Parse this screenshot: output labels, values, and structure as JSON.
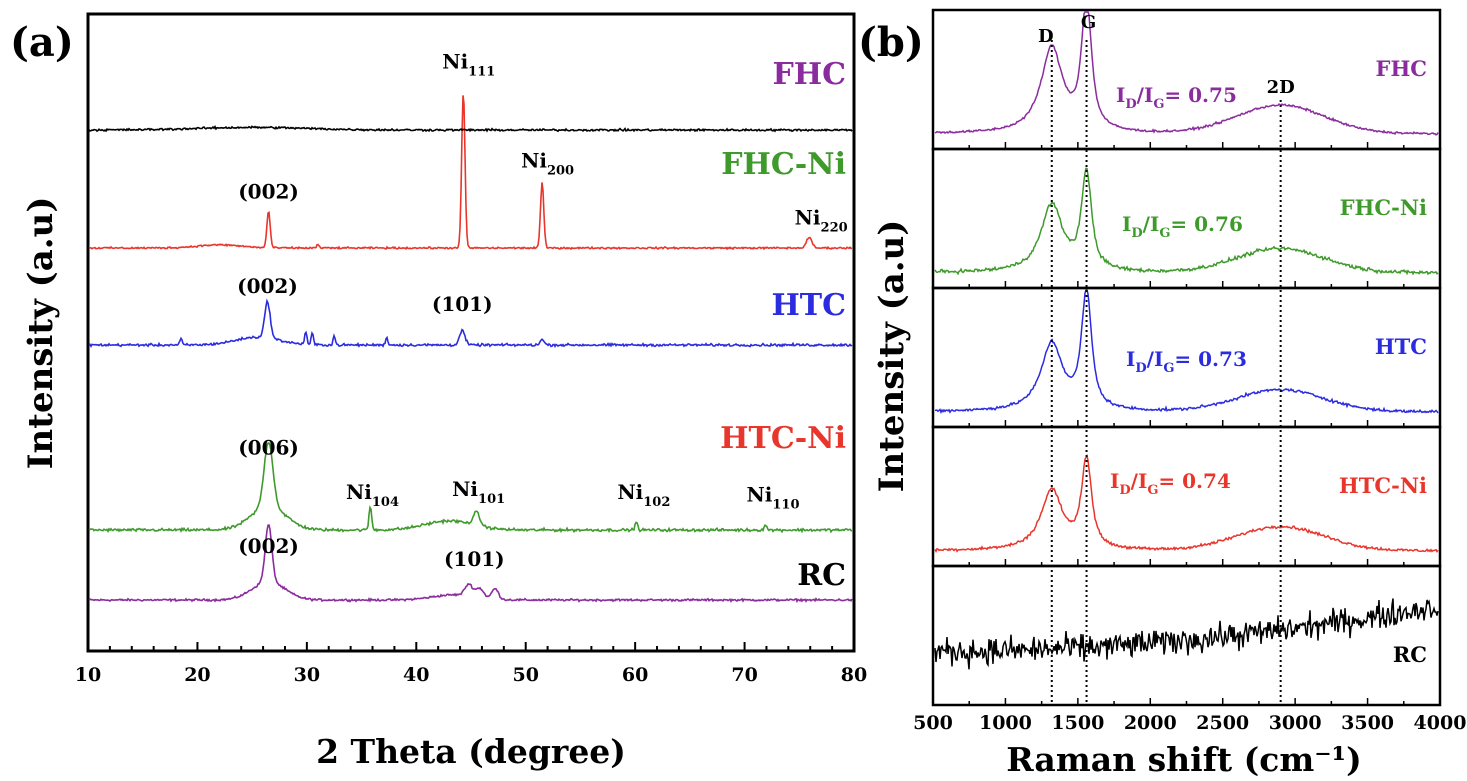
{
  "chart_data": [
    {
      "type": "line",
      "panel": "(a)",
      "xlabel": "2 Theta (degree)",
      "ylabel": "Intensity (a.u)",
      "xlim": [
        10,
        80
      ],
      "xticks": [
        "10",
        "20",
        "30",
        "40",
        "50",
        "60",
        "70",
        "80"
      ],
      "stacked": true,
      "series": [
        {
          "name": "FHC",
          "color": "#8B2C9E",
          "baseline_level": 4,
          "noise": 0.06,
          "peaks": [
            [
              26.5,
              2.2,
              0.3
            ],
            [
              26.5,
              0.7,
              1.5
            ],
            [
              44.8,
              0.45,
              0.35
            ],
            [
              45.8,
              0.35,
              0.35
            ],
            [
              47.2,
              0.4,
              0.3
            ],
            [
              43.5,
              0.2,
              2.0
            ]
          ],
          "annotations": [
            {
              "text": "(002)",
              "x": 26.5,
              "level": 1.8
            },
            {
              "text": "(101)",
              "x": 45.3,
              "level": 1.3
            }
          ]
        },
        {
          "name": "FHC-Ni",
          "color": "#3F9A2C",
          "baseline_level": 3,
          "noise": 0.08,
          "peaks": [
            [
              26.5,
              2.5,
              0.4
            ],
            [
              26.5,
              0.9,
              1.6
            ],
            [
              35.8,
              0.9,
              0.12
            ],
            [
              45.5,
              0.5,
              0.3
            ],
            [
              43.0,
              0.35,
              2.2
            ],
            [
              60.1,
              0.3,
              0.12
            ],
            [
              71.9,
              0.2,
              0.12
            ]
          ],
          "annotations": [
            {
              "text": "(006)",
              "x": 26.5,
              "level": 2.9
            },
            {
              "text": "Ni",
              "sub": "104",
              "x": 36.0,
              "level": 1.2
            },
            {
              "text": "Ni",
              "sub": "101",
              "x": 45.7,
              "level": 1.3
            },
            {
              "text": "Ni",
              "sub": "102",
              "x": 60.8,
              "level": 1.2
            },
            {
              "text": "Ni",
              "sub": "110",
              "x": 72.6,
              "level": 1.1
            }
          ]
        },
        {
          "name": "HTC",
          "color": "#2B2BE0",
          "baseline_level": 2,
          "noise": 0.07,
          "peaks": [
            [
              26.4,
              1.4,
              0.25
            ],
            [
              25.5,
              0.3,
              2.0
            ],
            [
              29.9,
              0.5,
              0.1
            ],
            [
              30.5,
              0.45,
              0.1
            ],
            [
              32.5,
              0.35,
              0.1
            ],
            [
              37.3,
              0.3,
              0.1
            ],
            [
              44.2,
              0.55,
              0.25
            ],
            [
              51.5,
              0.2,
              0.2
            ],
            [
              18.5,
              0.25,
              0.1
            ]
          ],
          "annotations": [
            {
              "text": "(002)",
              "x": 26.4,
              "level": 2.0
            },
            {
              "text": "(101)",
              "x": 44.2,
              "level": 1.3
            }
          ]
        },
        {
          "name": "HTC-Ni",
          "color": "#E8362C",
          "baseline_level": 1,
          "noise": 0.05,
          "peaks": [
            [
              26.5,
              1.4,
              0.15
            ],
            [
              44.3,
              6.0,
              0.15
            ],
            [
              51.5,
              2.5,
              0.15
            ],
            [
              75.9,
              0.4,
              0.25
            ],
            [
              31.0,
              0.15,
              0.1
            ],
            [
              22.0,
              0.12,
              2.0
            ]
          ],
          "annotations": [
            {
              "text": "(002)",
              "x": 26.5,
              "level": 1.9
            },
            {
              "text": "Ni",
              "sub": "111",
              "x": 44.8,
              "level": 6.9
            },
            {
              "text": "Ni",
              "sub": "200",
              "x": 52.0,
              "level": 3.1
            },
            {
              "text": "Ni",
              "sub": "220",
              "x": 77.0,
              "level": 0.9
            }
          ]
        },
        {
          "name": "RC",
          "color": "#000000",
          "baseline_level": 0,
          "noise": 0.06,
          "peaks": [
            [
              25.0,
              0.1,
              5.0
            ]
          ],
          "annotations": []
        }
      ]
    },
    {
      "type": "line",
      "panel": "(b)",
      "xlabel": "Raman shift (cm⁻¹)",
      "ylabel": "Intensity (a.u)",
      "xlim": [
        500,
        4000
      ],
      "xticks": [
        "500",
        "1000",
        "1500",
        "2000",
        "2500",
        "3000",
        "3500",
        "4000"
      ],
      "stacked": true,
      "band_markers": [
        {
          "label": "D",
          "x": 1320
        },
        {
          "label": "G",
          "x": 1560
        },
        {
          "label": "2D",
          "x": 2900
        }
      ],
      "series": [
        {
          "name": "FHC",
          "color": "#8B2C9E",
          "ratio": {
            "prefix": "I",
            "sub1": "D",
            "slash": "/I",
            "sub2": "G",
            "value": "= 0.75"
          },
          "D_height": 0.78,
          "G_height": 1.0,
          "twoD_height": 0.26,
          "noise": 0.015
        },
        {
          "name": "FHC-Ni",
          "color": "#3F9A2C",
          "ratio": {
            "prefix": "I",
            "sub1": "D",
            "slash": "/I",
            "sub2": "G",
            "value": "= 0.76"
          },
          "D_height": 0.62,
          "G_height": 0.76,
          "twoD_height": 0.22,
          "noise": 0.025
        },
        {
          "name": "HTC",
          "color": "#2B2BE0",
          "ratio": {
            "prefix": "I",
            "sub1": "D",
            "slash": "/I",
            "sub2": "G",
            "value": "= 0.73"
          },
          "D_height": 0.62,
          "G_height": 0.92,
          "twoD_height": 0.2,
          "noise": 0.02
        },
        {
          "name": "HTC-Ni",
          "color": "#E8362C",
          "ratio": {
            "prefix": "I",
            "sub1": "D",
            "slash": "/I",
            "sub2": "G",
            "value": "= 0.74"
          },
          "D_height": 0.55,
          "G_height": 0.7,
          "twoD_height": 0.22,
          "noise": 0.02
        },
        {
          "name": "RC",
          "color": "#000000",
          "noise": 0.18,
          "trend": [
            0.38,
            0.8
          ]
        }
      ]
    }
  ]
}
